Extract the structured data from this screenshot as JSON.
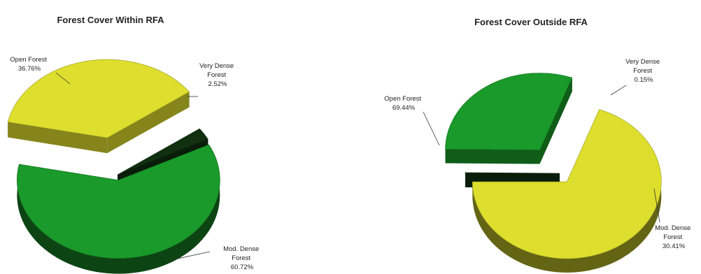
{
  "chart_data": [
    {
      "type": "pie",
      "title": "Forest Cover Within RFA",
      "slices": [
        {
          "label_lines": [
            "Very Dense",
            "Forest"
          ],
          "value": 2.52,
          "value_text": "2.52%",
          "color": "#103010"
        },
        {
          "label_lines": [
            "Mod. Dense",
            "Forest"
          ],
          "value": 60.72,
          "value_text": "60.72%",
          "color": "#1a9a2a"
        },
        {
          "label_lines": [
            "Open Forest"
          ],
          "value": 36.76,
          "value_text": "36.76%",
          "color": "#dede2e"
        }
      ]
    },
    {
      "type": "pie",
      "title": "Forest Cover Outside RFA",
      "slices": [
        {
          "label_lines": [
            "Very Dense",
            "Forest"
          ],
          "value": 0.15,
          "value_text": "0.15%",
          "color": "#103010"
        },
        {
          "label_lines": [
            "Mod. Dense",
            "Forest"
          ],
          "value": 30.41,
          "value_text": "30.41%",
          "color": "#1a9a2a"
        },
        {
          "label_lines": [
            "Open Forest"
          ],
          "value": 69.44,
          "value_text": "69.44%",
          "color": "#dede2e"
        }
      ]
    }
  ]
}
